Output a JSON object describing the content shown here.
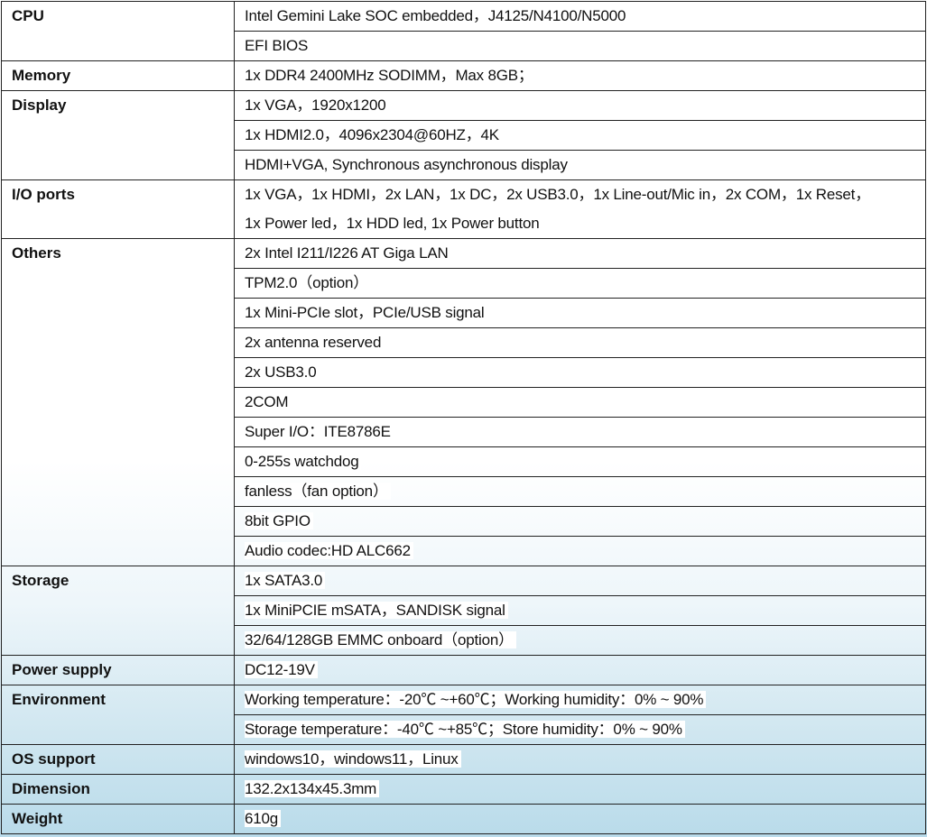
{
  "specs": [
    {
      "label": "CPU",
      "values": [
        [
          "Intel Gemini Lake SOC embedded，J4125/N4100/N5000"
        ],
        [
          "EFI BIOS"
        ]
      ]
    },
    {
      "label": "Memory",
      "values": [
        [
          "1x DDR4 2400MHz SODIMM，Max 8GB；"
        ]
      ]
    },
    {
      "label": "Display",
      "values": [
        [
          "1x VGA，1920x1200"
        ],
        [
          "1x HDMI2.0，4096x2304@60HZ，4K"
        ],
        [
          "HDMI+VGA, Synchronous asynchronous display"
        ]
      ]
    },
    {
      "label": "I/O ports",
      "values": [
        [
          "1x VGA，1x HDMI，2x LAN，1x DC，2x USB3.0，1x Line-out/Mic in，2x COM，1x Reset，",
          "1x Power led，1x HDD led, 1x Power button"
        ]
      ]
    },
    {
      "label": "Others",
      "values": [
        [
          "2x Intel I211/I226 AT Giga LAN"
        ],
        [
          "TPM2.0（option）"
        ],
        [
          "1x Mini-PCIe slot，PCIe/USB signal"
        ],
        [
          "2x antenna reserved"
        ],
        [
          "2x USB3.0"
        ],
        [
          "2COM"
        ],
        [
          "Super I/O：ITE8786E"
        ],
        [
          "0-255s watchdog"
        ],
        [
          "fanless（fan option）"
        ],
        [
          "8bit GPIO"
        ],
        [
          "Audio codec:HD ALC662"
        ]
      ]
    },
    {
      "label": "Storage",
      "values": [
        [
          "1x SATA3.0"
        ],
        [
          "1x MiniPCIE mSATA，SANDISK signal"
        ],
        [
          "32/64/128GB EMMC onboard（option）"
        ]
      ]
    },
    {
      "label": "Power supply",
      "values": [
        [
          "DC12-19V"
        ]
      ]
    },
    {
      "label": "Environment",
      "values": [
        [
          "Working temperature：-20℃ ~+60℃；Working humidity：0% ~ 90%"
        ],
        [
          "Storage temperature：-40℃ ~+85℃；Store humidity：0% ~ 90%"
        ]
      ]
    },
    {
      "label": "OS support",
      "values": [
        [
          "windows10，windows11，Linux"
        ]
      ]
    },
    {
      "label": "Dimension",
      "values": [
        [
          "132.2x134x45.3mm"
        ]
      ]
    },
    {
      "label": "Weight",
      "values": [
        [
          "610g"
        ]
      ]
    }
  ]
}
